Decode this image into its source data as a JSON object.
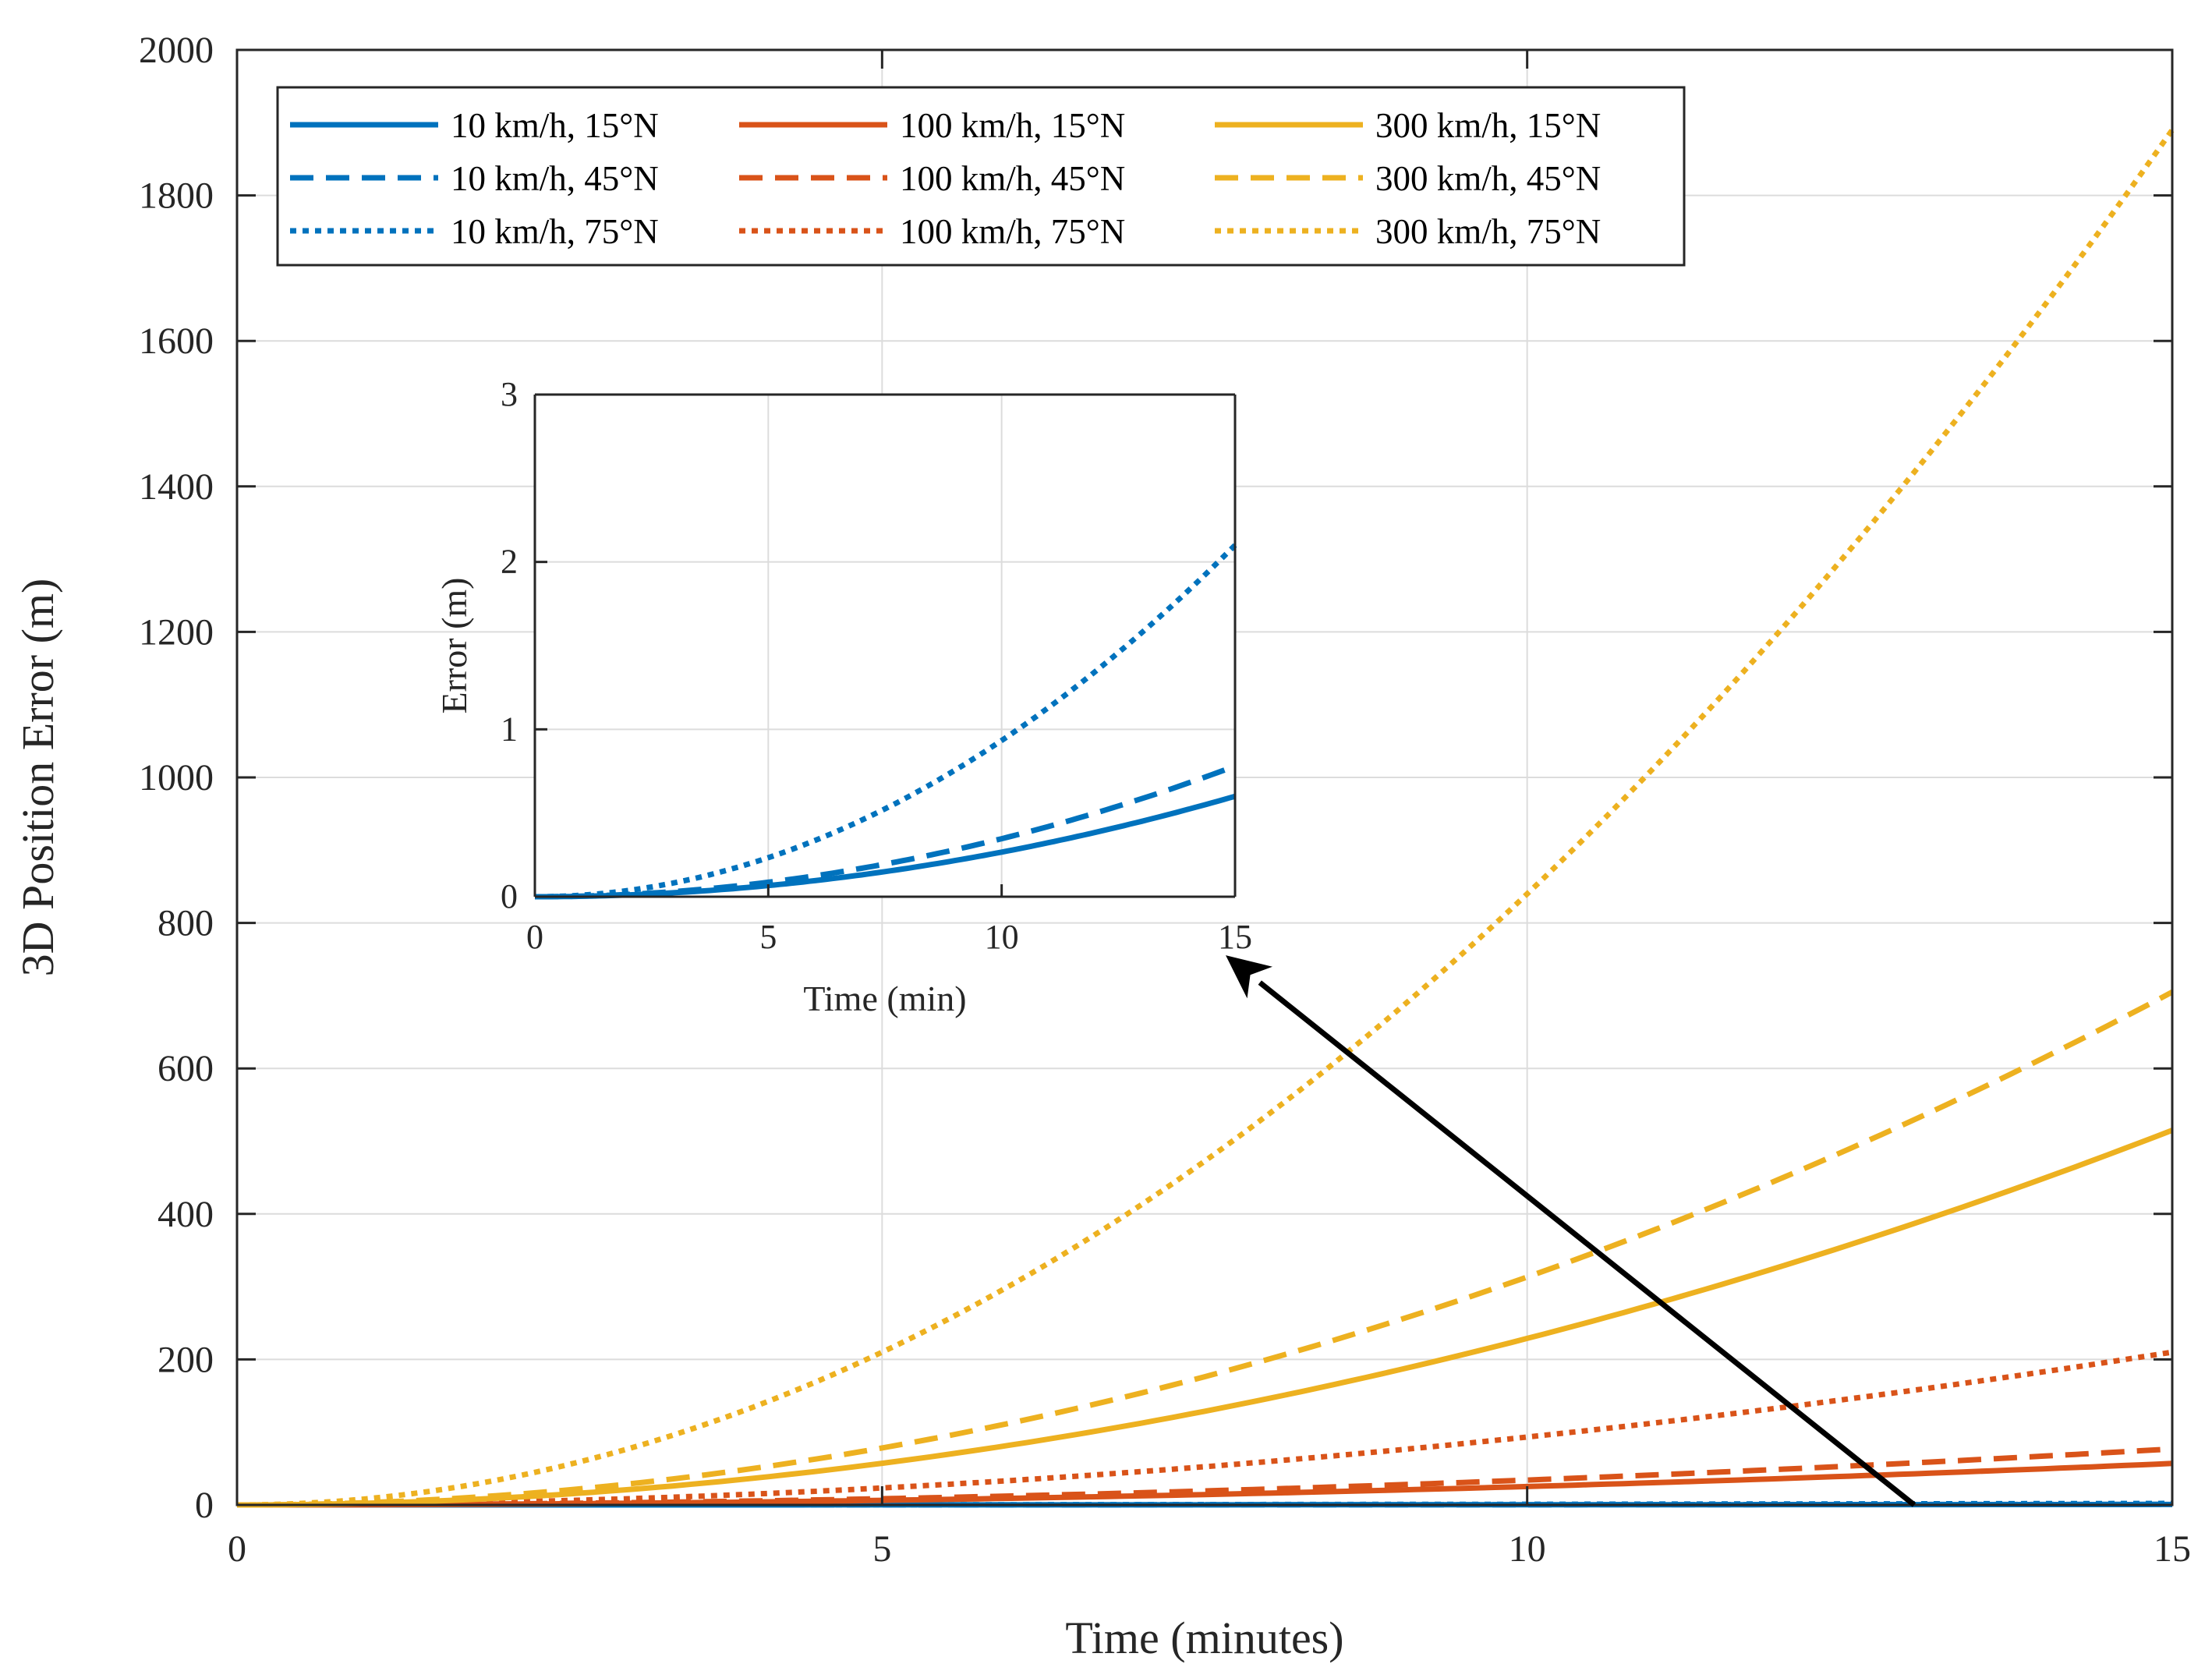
{
  "chart_data": [
    {
      "id": "main",
      "type": "line",
      "title": "",
      "xlabel": "Time (minutes)",
      "ylabel": "3D Position Error (m)",
      "xlim": [
        0,
        15
      ],
      "ylim": [
        0,
        2000
      ],
      "xticks": [
        0,
        5,
        10,
        15
      ],
      "yticks": [
        0,
        200,
        400,
        600,
        800,
        1000,
        1200,
        1400,
        1600,
        1800,
        2000
      ],
      "grid": true,
      "legend": {
        "placement": "top-left",
        "columns": 3
      },
      "series": [
        {
          "name": "10 km/h, 15°N",
          "color": "#0072BD",
          "style": "solid",
          "final": 0.6
        },
        {
          "name": "10 km/h, 45°N",
          "color": "#0072BD",
          "style": "dashed",
          "final": 0.78
        },
        {
          "name": "10 km/h, 75°N",
          "color": "#0072BD",
          "style": "dotted",
          "final": 2.1
        },
        {
          "name": "100 km/h, 15°N",
          "color": "#D95319",
          "style": "solid",
          "final": 57
        },
        {
          "name": "100 km/h, 45°N",
          "color": "#D95319",
          "style": "dashed",
          "final": 77
        },
        {
          "name": "100 km/h, 75°N",
          "color": "#D95319",
          "style": "dotted",
          "final": 210
        },
        {
          "name": "300 km/h, 15°N",
          "color": "#EDB120",
          "style": "solid",
          "final": 515
        },
        {
          "name": "300 km/h, 45°N",
          "color": "#EDB120",
          "style": "dashed",
          "final": 705
        },
        {
          "name": "300 km/h, 75°N",
          "color": "#EDB120",
          "style": "dotted",
          "final": 1890
        }
      ],
      "growth": "quadratic",
      "arrow": {
        "from": [
          13,
          0
        ],
        "to_inset": [
          14.8,
          -0.35
        ]
      }
    },
    {
      "id": "inset",
      "type": "line",
      "title": "",
      "xlabel": "Time (min)",
      "ylabel": "Error (m)",
      "xlim": [
        0,
        15
      ],
      "ylim": [
        0,
        3
      ],
      "xticks": [
        0,
        5,
        10,
        15
      ],
      "yticks": [
        0,
        1,
        2,
        3
      ],
      "grid": true,
      "series": [
        {
          "name": "10 km/h, 15°N",
          "color": "#0072BD",
          "style": "solid",
          "final": 0.6
        },
        {
          "name": "10 km/h, 45°N",
          "color": "#0072BD",
          "style": "dashed",
          "final": 0.78
        },
        {
          "name": "10 km/h, 75°N",
          "color": "#0072BD",
          "style": "dotted",
          "final": 2.1
        }
      ],
      "growth": "quadratic"
    }
  ]
}
